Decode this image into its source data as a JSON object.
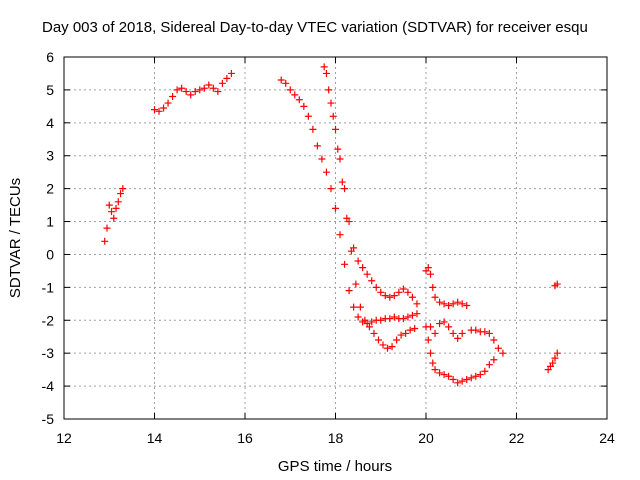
{
  "chart_data": {
    "type": "scatter",
    "title": "Day 003 of 2018, Sidereal Day-to-day VTEC variation (SDTVAR) for receiver esqu",
    "xlabel": "GPS time / hours",
    "ylabel": "SDTVAR / TECUs",
    "xlim": [
      12,
      24
    ],
    "ylim": [
      -5,
      6
    ],
    "xticks": [
      "12",
      "14",
      "16",
      "18",
      "20",
      "22",
      "24"
    ],
    "yticks": [
      "-5",
      "-4",
      "-3",
      "-2",
      "-1",
      "0",
      "1",
      "2",
      "3",
      "4",
      "5",
      "6"
    ],
    "grid": true,
    "marker": "plus",
    "color": "#ff0000",
    "segments": [
      {
        "x": [
          12.9,
          12.95,
          13.0,
          13.05,
          13.1,
          13.15,
          13.2,
          13.25,
          13.3
        ],
        "y": [
          0.4,
          0.8,
          1.5,
          1.3,
          1.1,
          1.4,
          1.6,
          1.85,
          2.0
        ]
      },
      {
        "x": [
          14.0,
          14.1,
          14.2,
          14.3,
          14.4,
          14.5,
          14.6,
          14.7,
          14.8,
          14.9,
          15.0,
          15.1,
          15.2,
          15.3,
          15.4,
          15.5,
          15.6,
          15.7
        ],
        "y": [
          4.4,
          4.35,
          4.45,
          4.6,
          4.8,
          5.0,
          5.05,
          4.95,
          4.85,
          4.95,
          5.0,
          5.05,
          5.15,
          5.05,
          4.95,
          5.2,
          5.35,
          5.5
        ]
      },
      {
        "x": [
          16.8,
          16.9,
          17.0,
          17.1,
          17.2,
          17.3,
          17.4,
          17.5,
          17.6,
          17.7,
          17.8,
          17.9,
          18.0,
          18.1,
          18.2,
          18.3,
          18.4,
          18.5,
          18.6,
          18.7,
          18.8,
          18.9,
          19.0,
          19.1,
          19.2,
          19.3,
          19.4,
          19.5,
          19.6,
          19.7,
          19.8
        ],
        "y": [
          5.3,
          5.2,
          5.0,
          4.85,
          4.7,
          4.5,
          4.2,
          3.8,
          3.3,
          2.9,
          2.5,
          2.0,
          1.4,
          0.6,
          -0.3,
          -1.1,
          -1.6,
          -1.9,
          -2.05,
          -2.1,
          -2.05,
          -2.0,
          -2.0,
          -1.95,
          -1.95,
          -1.9,
          -1.95,
          -1.95,
          -1.9,
          -1.85,
          -1.8
        ]
      },
      {
        "x": [
          17.75,
          17.85,
          17.95,
          18.05,
          18.15,
          18.25,
          18.35,
          18.45,
          18.55,
          18.65,
          18.75,
          18.85,
          18.95,
          19.05,
          19.15,
          19.25,
          19.35,
          19.45,
          19.55,
          19.65,
          19.75
        ],
        "y": [
          5.7,
          5.0,
          4.2,
          3.2,
          2.2,
          1.1,
          0.1,
          -0.9,
          -1.6,
          -2.0,
          -2.2,
          -2.4,
          -2.6,
          -2.75,
          -2.85,
          -2.8,
          -2.6,
          -2.45,
          -2.4,
          -2.3,
          -2.25
        ]
      },
      {
        "x": [
          17.8,
          17.9,
          18.0,
          18.1,
          18.2,
          18.3,
          18.4,
          18.5,
          18.6,
          18.7,
          18.8,
          18.9,
          19.0,
          19.1,
          19.2,
          19.3,
          19.4,
          19.5,
          19.6,
          19.7,
          19.8
        ],
        "y": [
          5.5,
          4.6,
          3.8,
          2.9,
          2.0,
          1.0,
          0.2,
          -0.2,
          -0.4,
          -0.6,
          -0.8,
          -1.0,
          -1.15,
          -1.25,
          -1.3,
          -1.25,
          -1.15,
          -1.05,
          -1.15,
          -1.3,
          -1.5
        ]
      },
      {
        "x": [
          20.0,
          20.05,
          20.1,
          20.15,
          20.2,
          20.3,
          20.4,
          20.5,
          20.6,
          20.7,
          20.8,
          20.9,
          21.0,
          21.1,
          21.2,
          21.3,
          21.4,
          21.5,
          21.6,
          21.7
        ],
        "y": [
          -0.5,
          -0.4,
          -0.6,
          -1.0,
          -1.3,
          -1.45,
          -1.5,
          -1.55,
          -1.5,
          -1.45,
          -1.5,
          -1.55,
          -2.3,
          -2.3,
          -2.35,
          -2.35,
          -2.4,
          -2.6,
          -2.85,
          -3.0
        ]
      },
      {
        "x": [
          20.0,
          20.05,
          20.1,
          20.15,
          20.2,
          20.3,
          20.4,
          20.5,
          20.6,
          20.7,
          20.8,
          20.9,
          21.0,
          21.1,
          21.2,
          21.3,
          21.4,
          21.5
        ],
        "y": [
          -2.2,
          -2.6,
          -3.0,
          -3.3,
          -3.5,
          -3.6,
          -3.65,
          -3.7,
          -3.8,
          -3.9,
          -3.85,
          -3.8,
          -3.75,
          -3.7,
          -3.65,
          -3.55,
          -3.35,
          -3.2
        ]
      },
      {
        "x": [
          20.1,
          20.2,
          20.3,
          20.4,
          20.5,
          20.6,
          20.7,
          20.8
        ],
        "y": [
          -2.2,
          -2.4,
          -2.1,
          -2.05,
          -2.2,
          -2.4,
          -2.55,
          -2.4
        ]
      },
      {
        "x": [
          22.7,
          22.75,
          22.8,
          22.85,
          22.9
        ],
        "y": [
          -3.5,
          -3.4,
          -3.3,
          -3.15,
          -3.0
        ]
      },
      {
        "x": [
          22.85,
          22.9
        ],
        "y": [
          -0.95,
          -0.9
        ]
      }
    ]
  }
}
